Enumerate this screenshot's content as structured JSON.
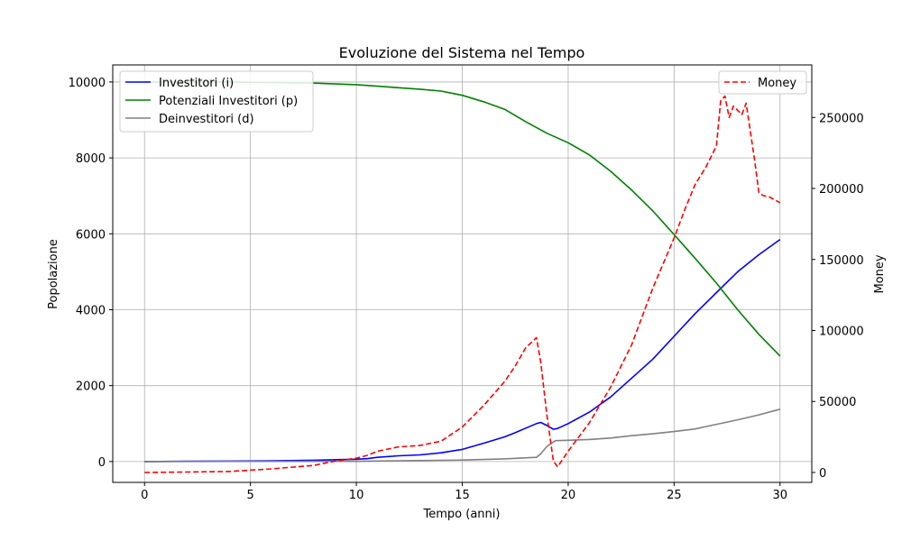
{
  "chart_data": {
    "type": "line",
    "title": "Evoluzione del Sistema nel Tempo",
    "xlabel": "Tempo (anni)",
    "ylabel": "Popolazione",
    "y2label": "Money",
    "xlim": [
      -1.5,
      31.5
    ],
    "ylim": [
      -550,
      10450
    ],
    "y2lim": [
      -7000,
      287000
    ],
    "xticks": [
      0,
      5,
      10,
      15,
      20,
      25,
      30
    ],
    "yticks": [
      0,
      2000,
      4000,
      6000,
      8000,
      10000
    ],
    "y2ticks": [
      0,
      50000,
      100000,
      150000,
      200000,
      250000
    ],
    "grid": true,
    "legend_left": "top-left",
    "legend_right": "top-right",
    "series": [
      {
        "name": "Investitori (i)",
        "axis": "left",
        "color": "#0000ff",
        "dash": false,
        "x": [
          0,
          2,
          4,
          6,
          8,
          10,
          10.5,
          11,
          12,
          13,
          14,
          15,
          16,
          17,
          17.5,
          18,
          18.5,
          18.7,
          19,
          19.3,
          19.5,
          20,
          21,
          22,
          23,
          24,
          25,
          26,
          27,
          28,
          29,
          30
        ],
        "y": [
          0,
          5,
          10,
          20,
          35,
          60,
          75,
          110,
          150,
          175,
          230,
          320,
          480,
          650,
          760,
          880,
          1000,
          1030,
          950,
          850,
          870,
          1000,
          1300,
          1700,
          2200,
          2700,
          3300,
          3900,
          4450,
          5000,
          5450,
          5850
        ]
      },
      {
        "name": "Potenziali Investitori (p)",
        "axis": "left",
        "color": "#008000",
        "dash": false,
        "x": [
          0,
          2,
          4,
          6,
          8,
          10,
          11,
          12,
          13,
          14,
          15,
          16,
          17,
          18,
          19,
          20,
          21,
          22,
          23,
          24,
          25,
          26,
          27,
          28,
          29,
          30
        ],
        "y": [
          10000,
          9999,
          9997,
          9990,
          9970,
          9930,
          9890,
          9850,
          9810,
          9760,
          9650,
          9480,
          9280,
          8950,
          8650,
          8400,
          8080,
          7650,
          7150,
          6600,
          5980,
          5350,
          4700,
          4000,
          3350,
          2780
        ]
      },
      {
        "name": "Deinvestitori (d)",
        "axis": "left",
        "color": "#808080",
        "dash": false,
        "x": [
          0,
          5,
          10,
          15,
          17,
          18.5,
          18.7,
          19,
          19.4,
          20,
          21,
          22,
          23,
          24,
          25,
          26,
          26.5,
          27,
          28,
          29,
          30
        ],
        "y": [
          0,
          3,
          5,
          40,
          70,
          110,
          200,
          400,
          550,
          560,
          580,
          620,
          680,
          730,
          790,
          860,
          920,
          980,
          1100,
          1230,
          1380
        ]
      },
      {
        "name": "Money",
        "axis": "right",
        "color": "#ff0000",
        "dash": true,
        "x": [
          0,
          2,
          4,
          6,
          8,
          9,
          10,
          10.5,
          11,
          12,
          13,
          14,
          15,
          16,
          17,
          17.5,
          18,
          18.3,
          18.5,
          18.7,
          19,
          19.3,
          19.5,
          20,
          21,
          22,
          23,
          23.5,
          24,
          25,
          25.5,
          26,
          26.5,
          27,
          27.2,
          27.4,
          27.6,
          27.8,
          28,
          28.2,
          28.4,
          28.6,
          28.8,
          29,
          29.2,
          29.5,
          30
        ],
        "y": [
          0,
          300,
          700,
          2500,
          5000,
          8000,
          10000,
          12000,
          15000,
          18000,
          19000,
          22000,
          32000,
          47000,
          64000,
          75000,
          88000,
          92000,
          95000,
          78000,
          40000,
          8000,
          4000,
          15000,
          35000,
          60000,
          90000,
          110000,
          130000,
          165000,
          185000,
          203000,
          215000,
          230000,
          262000,
          265000,
          250000,
          258000,
          255000,
          252000,
          260000,
          240000,
          220000,
          197000,
          195000,
          194000,
          190000
        ]
      }
    ]
  }
}
